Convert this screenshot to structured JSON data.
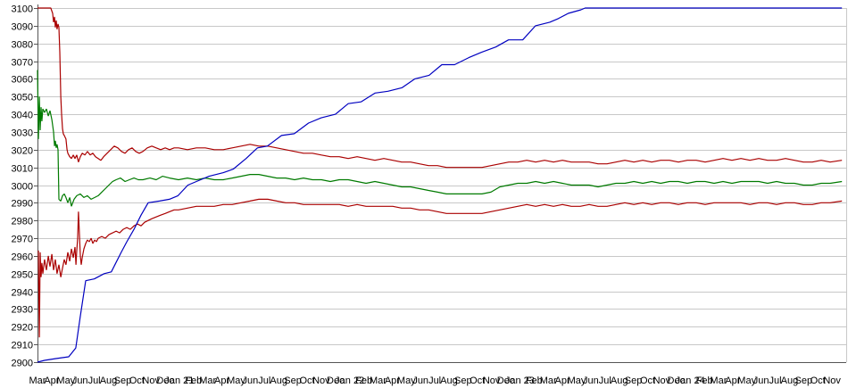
{
  "chart_data": {
    "type": "line",
    "title": "",
    "legend": "none",
    "grid": "horizontal",
    "background": "#ffffff",
    "grid_color": "#c8c8c8",
    "axis_color": "#555555",
    "text_color": "#000000",
    "x_axis": {
      "unit": "month",
      "range": [
        0,
        57
      ],
      "labels": [
        "Mar",
        "Apr",
        "May",
        "Jun",
        "Jul",
        "Aug",
        "Sep",
        "Oct",
        "Nov",
        "Dec",
        "Jan 21",
        "Feb",
        "Mar",
        "Apr",
        "May",
        "Jun",
        "Jul",
        "Aug",
        "Sep",
        "Oct",
        "Nov",
        "Dec",
        "Jan 22",
        "Feb",
        "Mar",
        "Apr",
        "May",
        "Jun",
        "Jul",
        "Aug",
        "Sep",
        "Oct",
        "Nov",
        "Dec",
        "Jan 23",
        "Feb",
        "Mar",
        "Apr",
        "May",
        "Jun",
        "Jul",
        "Aug",
        "Sep",
        "Oct",
        "Nov",
        "Dec",
        "Jan 24",
        "Feb",
        "Mar",
        "Apr",
        "May",
        "Jun",
        "Jul",
        "Aug",
        "Sep",
        "Oct",
        "Nov"
      ]
    },
    "y_axis": {
      "min": 2900,
      "max": 3100,
      "step": 10,
      "tick_labels": [
        "3100",
        "3090",
        "3080",
        "3070",
        "3060",
        "3050",
        "3040",
        "3030",
        "3020",
        "3010",
        "3000",
        "2990",
        "2980",
        "2970",
        "2960",
        "2950",
        "2940",
        "2930",
        "2920",
        "2910",
        "2900"
      ]
    },
    "series": [
      {
        "name": "red-upper-band",
        "color": "#aa0000",
        "x": [
          0,
          0.94,
          1.07,
          1.13,
          1.2,
          1.26,
          1.32,
          1.38,
          1.45,
          1.51,
          1.57,
          1.64,
          1.7,
          1.76,
          1.82,
          1.89,
          2.01,
          2.08,
          2.14,
          2.27,
          2.39,
          2.52,
          2.64,
          2.77,
          2.89,
          3.02,
          3.15,
          3.34,
          3.52,
          3.71,
          3.9,
          4.09,
          4.28,
          4.47,
          4.66,
          4.91,
          5.16,
          5.41,
          5.66,
          5.92,
          6.17,
          6.42,
          6.67,
          6.92,
          7.17,
          7.43,
          7.74,
          8.06,
          8.37,
          8.68,
          9.0,
          9.31,
          9.63,
          9.94,
          10.57,
          11.2,
          11.83,
          12.46,
          13.09,
          13.72,
          14.35,
          14.98,
          15.6,
          16.23,
          16.86,
          17.49,
          18.12,
          18.75,
          19.38,
          20.01,
          20.64,
          21.27,
          21.9,
          22.53,
          23.16,
          23.78,
          24.41,
          25.04,
          25.67,
          26.3,
          26.93,
          27.56,
          28.19,
          28.82,
          29.45,
          30.08,
          30.7,
          31.33,
          31.96,
          32.59,
          33.22,
          33.85,
          34.48,
          35.11,
          35.74,
          36.37,
          37.0,
          37.62,
          38.25,
          38.88,
          39.51,
          40.14,
          40.77,
          41.4,
          42.03,
          42.66,
          43.29,
          43.92,
          44.54,
          45.17,
          45.8,
          46.43,
          47.06,
          47.69,
          48.32,
          48.95,
          49.58,
          50.21,
          50.84,
          51.46,
          52.09,
          52.72,
          53.35,
          53.98,
          54.61,
          55.24,
          55.87,
          56.7
        ],
        "y": [
          3100,
          3100,
          3097,
          3092,
          3095,
          3089,
          3093,
          3088,
          3091,
          3089,
          3075,
          3050,
          3040,
          3032,
          3029,
          3028,
          3026,
          3020,
          3018,
          3016,
          3015,
          3017,
          3015,
          3017,
          3013,
          3016,
          3018,
          3017,
          3019,
          3017,
          3018,
          3016,
          3015,
          3014,
          3016,
          3018,
          3020,
          3022,
          3021,
          3019,
          3018,
          3020,
          3021,
          3019,
          3018,
          3019,
          3021,
          3022,
          3021,
          3020,
          3021,
          3020,
          3021,
          3021,
          3020,
          3021,
          3021,
          3020,
          3020,
          3021,
          3022,
          3023,
          3022,
          3022,
          3021,
          3020,
          3019,
          3018,
          3018,
          3017,
          3016,
          3016,
          3015,
          3016,
          3015,
          3014,
          3015,
          3014,
          3013,
          3013,
          3012,
          3011,
          3011,
          3010,
          3010,
          3010,
          3010,
          3010,
          3011,
          3012,
          3013,
          3013,
          3014,
          3013,
          3014,
          3013,
          3014,
          3013,
          3013,
          3013,
          3012,
          3012,
          3013,
          3014,
          3013,
          3014,
          3013,
          3014,
          3014,
          3013,
          3014,
          3014,
          3013,
          3014,
          3015,
          3014,
          3015,
          3014,
          3015,
          3014,
          3014,
          3015,
          3014,
          3013,
          3013,
          3014,
          3013,
          3014
        ]
      },
      {
        "name": "red-lower-band",
        "color": "#aa0000",
        "x": [
          0.06,
          0.13,
          0.19,
          0.25,
          0.31,
          0.38,
          0.5,
          0.63,
          0.76,
          0.88,
          1.01,
          1.13,
          1.26,
          1.38,
          1.51,
          1.64,
          1.76,
          1.89,
          2.01,
          2.14,
          2.27,
          2.39,
          2.52,
          2.64,
          2.71,
          2.77,
          2.83,
          2.89,
          2.96,
          3.02,
          3.08,
          3.15,
          3.27,
          3.4,
          3.52,
          3.65,
          3.78,
          3.9,
          4.03,
          4.15,
          4.28,
          4.53,
          4.78,
          5.03,
          5.29,
          5.54,
          5.79,
          6.04,
          6.29,
          6.54,
          6.8,
          7.05,
          7.3,
          7.55,
          7.8,
          8.06,
          8.37,
          8.68,
          9.0,
          9.31,
          9.63,
          9.94,
          10.57,
          11.2,
          11.83,
          12.46,
          13.09,
          13.72,
          14.35,
          14.98,
          15.6,
          16.23,
          16.86,
          17.49,
          18.12,
          18.75,
          19.38,
          20.01,
          20.64,
          21.27,
          21.9,
          22.53,
          23.16,
          23.78,
          24.41,
          25.04,
          25.67,
          26.3,
          26.93,
          27.56,
          28.19,
          28.82,
          29.45,
          30.08,
          30.7,
          31.33,
          31.96,
          32.59,
          33.22,
          33.85,
          34.48,
          35.11,
          35.74,
          36.37,
          37.0,
          37.62,
          38.25,
          38.88,
          39.51,
          40.14,
          40.77,
          41.4,
          42.03,
          42.66,
          43.29,
          43.92,
          44.54,
          45.17,
          45.8,
          46.43,
          47.06,
          47.69,
          48.32,
          48.95,
          49.58,
          50.21,
          50.84,
          51.46,
          52.09,
          52.72,
          53.35,
          53.98,
          54.61,
          55.24,
          55.87,
          56.7
        ],
        "y": [
          2963,
          2914,
          2962,
          2948,
          2956,
          2950,
          2958,
          2952,
          2960,
          2954,
          2961,
          2952,
          2958,
          2950,
          2955,
          2948,
          2953,
          2958,
          2955,
          2962,
          2957,
          2964,
          2959,
          2965,
          2955,
          2963,
          2970,
          2985,
          2972,
          2960,
          2955,
          2959,
          2964,
          2967,
          2969,
          2968,
          2970,
          2967,
          2969,
          2968,
          2970,
          2971,
          2970,
          2972,
          2973,
          2974,
          2973,
          2975,
          2976,
          2975,
          2977,
          2978,
          2977,
          2979,
          2980,
          2981,
          2982,
          2983,
          2984,
          2985,
          2986,
          2986,
          2987,
          2988,
          2988,
          2988,
          2989,
          2989,
          2990,
          2991,
          2992,
          2992,
          2991,
          2990,
          2990,
          2989,
          2989,
          2989,
          2989,
          2989,
          2988,
          2989,
          2988,
          2988,
          2988,
          2988,
          2987,
          2987,
          2986,
          2986,
          2985,
          2984,
          2984,
          2984,
          2984,
          2984,
          2985,
          2986,
          2987,
          2988,
          2989,
          2988,
          2989,
          2988,
          2989,
          2988,
          2988,
          2989,
          2988,
          2988,
          2989,
          2990,
          2989,
          2990,
          2989,
          2990,
          2990,
          2989,
          2990,
          2990,
          2989,
          2990,
          2990,
          2990,
          2990,
          2989,
          2990,
          2990,
          2989,
          2990,
          2990,
          2989,
          2989,
          2990,
          2990,
          2991
        ]
      },
      {
        "name": "green-mid-line",
        "color": "#007a00",
        "x": [
          0,
          0.06,
          0.13,
          0.19,
          0.25,
          0.31,
          0.38,
          0.5,
          0.63,
          0.76,
          0.88,
          1.01,
          1.13,
          1.2,
          1.26,
          1.32,
          1.38,
          1.45,
          1.51,
          1.64,
          1.76,
          1.89,
          2.01,
          2.14,
          2.27,
          2.39,
          2.58,
          2.77,
          3.02,
          3.27,
          3.52,
          3.78,
          4.03,
          4.28,
          4.53,
          4.78,
          5.03,
          5.29,
          5.54,
          5.85,
          6.17,
          6.48,
          6.8,
          7.11,
          7.43,
          7.93,
          8.37,
          8.81,
          9.31,
          9.94,
          10.57,
          11.2,
          11.83,
          12.46,
          13.09,
          13.72,
          14.35,
          14.98,
          15.6,
          16.23,
          16.86,
          17.49,
          18.12,
          18.75,
          19.38,
          20.01,
          20.64,
          21.27,
          21.9,
          22.53,
          23.16,
          23.78,
          24.41,
          25.04,
          25.67,
          26.3,
          26.93,
          27.56,
          28.19,
          28.82,
          29.45,
          30.08,
          30.7,
          31.33,
          31.96,
          32.59,
          33.22,
          33.85,
          34.48,
          35.11,
          35.74,
          36.37,
          37.0,
          37.62,
          38.25,
          38.88,
          39.51,
          40.14,
          40.77,
          41.4,
          42.03,
          42.66,
          43.29,
          43.92,
          44.54,
          45.17,
          45.8,
          46.43,
          47.06,
          47.69,
          48.32,
          48.95,
          49.58,
          50.21,
          50.84,
          51.46,
          52.09,
          52.72,
          53.35,
          53.98,
          54.61,
          55.24,
          55.87,
          56.7
        ],
        "y": [
          3065,
          3026,
          3050,
          3031,
          3044,
          3036,
          3043,
          3041,
          3043,
          3039,
          3042,
          3037,
          3030,
          3022,
          3025,
          3021,
          3023,
          3020,
          2992,
          2991,
          2994,
          2995,
          2993,
          2990,
          2993,
          2988,
          2992,
          2994,
          2995,
          2993,
          2994,
          2992,
          2993,
          2994,
          2996,
          2998,
          3000,
          3002,
          3003,
          3004,
          3002,
          3003,
          3004,
          3003,
          3003,
          3004,
          3003,
          3005,
          3004,
          3003,
          3004,
          3003,
          3004,
          3003,
          3003,
          3004,
          3005,
          3006,
          3006,
          3005,
          3004,
          3004,
          3003,
          3004,
          3003,
          3003,
          3002,
          3003,
          3003,
          3002,
          3001,
          3002,
          3001,
          3000,
          2999,
          2999,
          2998,
          2997,
          2996,
          2995,
          2995,
          2995,
          2995,
          2995,
          2996,
          2999,
          3000,
          3001,
          3001,
          3002,
          3001,
          3002,
          3001,
          3000,
          3000,
          3000,
          2999,
          3000,
          3001,
          3001,
          3002,
          3001,
          3002,
          3001,
          3002,
          3002,
          3001,
          3002,
          3002,
          3001,
          3002,
          3001,
          3002,
          3002,
          3002,
          3001,
          3002,
          3001,
          3001,
          3000,
          3000,
          3001,
          3001,
          3002
        ]
      },
      {
        "name": "blue-step-line",
        "color": "#0000c0",
        "x": [
          0,
          0.5,
          1.3,
          2.2,
          2.7,
          3.0,
          3.4,
          4.0,
          4.7,
          5.2,
          5.9,
          6.3,
          6.8,
          7.3,
          7.8,
          8.6,
          9.3,
          9.9,
          10.6,
          11.5,
          12.1,
          13.1,
          13.8,
          14.7,
          15.5,
          16.2,
          17.2,
          18.1,
          19.1,
          20.0,
          21.0,
          21.9,
          22.8,
          23.8,
          24.7,
          25.7,
          26.6,
          27.6,
          28.5,
          29.4,
          30.4,
          31.3,
          32.3,
          33.2,
          34.2,
          35.1,
          36.1,
          36.7,
          37.4,
          38.3,
          38.6,
          56.7
        ],
        "y": [
          2900,
          2901,
          2902,
          2903,
          2908,
          2925,
          2946,
          2947,
          2950,
          2951,
          2962,
          2968,
          2975,
          2983,
          2990,
          2991,
          2992,
          2994,
          3000,
          3003,
          3005,
          3007,
          3009,
          3015,
          3021,
          3022,
          3028,
          3029,
          3035,
          3038,
          3040,
          3046,
          3047,
          3052,
          3053,
          3055,
          3060,
          3062,
          3068,
          3068,
          3072,
          3075,
          3078,
          3082,
          3082,
          3090,
          3092,
          3094,
          3097,
          3099,
          3100,
          3100
        ]
      }
    ]
  }
}
